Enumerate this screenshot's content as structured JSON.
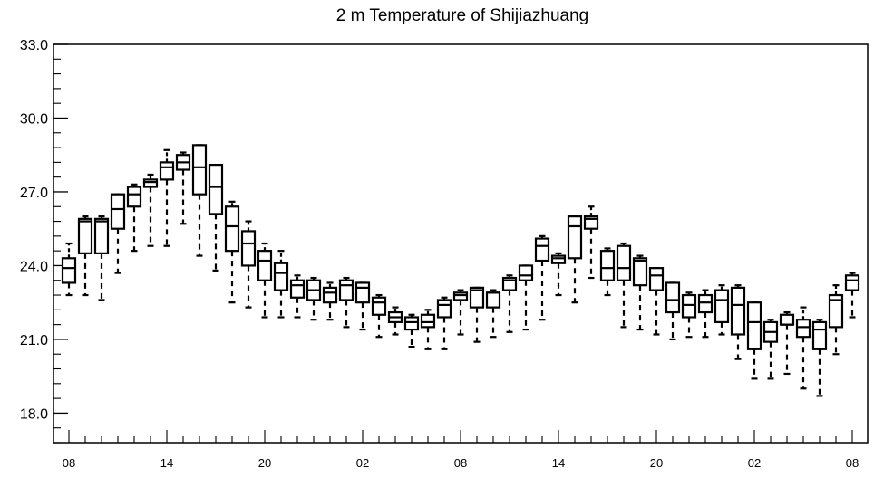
{
  "chart_data": {
    "type": "boxplot",
    "title": "2 m Temperature of Shijiazhuang",
    "xlabel": "",
    "ylabel": "",
    "ylim": [
      16.8,
      33.0
    ],
    "y_ticks": [
      18.0,
      21.0,
      24.0,
      27.0,
      30.0,
      33.0
    ],
    "y_tick_labels": [
      "18.0",
      "21.0",
      "24.0",
      "27.0",
      "30.0",
      "33.0"
    ],
    "x_tick_labels": [
      "08",
      "14",
      "20",
      "02",
      "08",
      "14",
      "20",
      "02",
      "08"
    ],
    "x_tick_positions": [
      0,
      6,
      12,
      18,
      24,
      30,
      36,
      42,
      48
    ],
    "grid": false,
    "series": [
      {
        "x": 0,
        "min": 22.8,
        "q1": 23.3,
        "median": 23.9,
        "q3": 24.3,
        "max": 24.9
      },
      {
        "x": 1,
        "min": 22.8,
        "q1": 24.5,
        "median": 25.8,
        "q3": 25.9,
        "max": 26.0
      },
      {
        "x": 2,
        "min": 22.6,
        "q1": 24.5,
        "median": 25.8,
        "q3": 25.9,
        "max": 26.0
      },
      {
        "x": 3,
        "min": 23.7,
        "q1": 25.5,
        "median": 26.3,
        "q3": 26.9,
        "max": 26.9
      },
      {
        "x": 4,
        "min": 24.6,
        "q1": 26.4,
        "median": 26.9,
        "q3": 27.2,
        "max": 27.3
      },
      {
        "x": 5,
        "min": 24.8,
        "q1": 27.2,
        "median": 27.4,
        "q3": 27.5,
        "max": 27.7
      },
      {
        "x": 6,
        "min": 24.8,
        "q1": 27.5,
        "median": 28.0,
        "q3": 28.2,
        "max": 28.7
      },
      {
        "x": 7,
        "min": 25.7,
        "q1": 27.9,
        "median": 28.2,
        "q3": 28.5,
        "max": 28.6
      },
      {
        "x": 8,
        "min": 24.4,
        "q1": 26.9,
        "median": 28.0,
        "q3": 28.9,
        "max": 28.9
      },
      {
        "x": 9,
        "min": 23.8,
        "q1": 26.1,
        "median": 27.2,
        "q3": 28.1,
        "max": 28.1
      },
      {
        "x": 10,
        "min": 22.5,
        "q1": 24.6,
        "median": 25.6,
        "q3": 26.4,
        "max": 26.6
      },
      {
        "x": 11,
        "min": 22.3,
        "q1": 24.0,
        "median": 24.9,
        "q3": 25.4,
        "max": 25.8
      },
      {
        "x": 12,
        "min": 21.9,
        "q1": 23.4,
        "median": 24.2,
        "q3": 24.6,
        "max": 24.9
      },
      {
        "x": 13,
        "min": 21.9,
        "q1": 23.0,
        "median": 23.7,
        "q3": 24.1,
        "max": 24.6
      },
      {
        "x": 14,
        "min": 21.9,
        "q1": 22.7,
        "median": 23.2,
        "q3": 23.4,
        "max": 23.6
      },
      {
        "x": 15,
        "min": 21.8,
        "q1": 22.6,
        "median": 23.0,
        "q3": 23.4,
        "max": 23.5
      },
      {
        "x": 16,
        "min": 21.8,
        "q1": 22.5,
        "median": 22.9,
        "q3": 23.1,
        "max": 23.3
      },
      {
        "x": 17,
        "min": 21.5,
        "q1": 22.6,
        "median": 23.2,
        "q3": 23.4,
        "max": 23.5
      },
      {
        "x": 18,
        "min": 21.4,
        "q1": 22.5,
        "median": 23.1,
        "q3": 23.3,
        "max": 23.3
      },
      {
        "x": 19,
        "min": 21.1,
        "q1": 22.0,
        "median": 22.5,
        "q3": 22.7,
        "max": 22.8
      },
      {
        "x": 20,
        "min": 21.2,
        "q1": 21.7,
        "median": 21.9,
        "q3": 22.1,
        "max": 22.3
      },
      {
        "x": 21,
        "min": 20.7,
        "q1": 21.4,
        "median": 21.7,
        "q3": 21.9,
        "max": 22.0
      },
      {
        "x": 22,
        "min": 20.6,
        "q1": 21.5,
        "median": 21.7,
        "q3": 22.0,
        "max": 22.2
      },
      {
        "x": 23,
        "min": 20.6,
        "q1": 21.9,
        "median": 22.4,
        "q3": 22.6,
        "max": 22.7
      },
      {
        "x": 24,
        "min": 21.2,
        "q1": 22.6,
        "median": 22.8,
        "q3": 22.9,
        "max": 23.0
      },
      {
        "x": 25,
        "min": 20.9,
        "q1": 22.3,
        "median": 23.0,
        "q3": 23.1,
        "max": 23.1
      },
      {
        "x": 26,
        "min": 21.1,
        "q1": 22.3,
        "median": 22.9,
        "q3": 22.9,
        "max": 23.0
      },
      {
        "x": 27,
        "min": 21.3,
        "q1": 23.0,
        "median": 23.4,
        "q3": 23.5,
        "max": 23.6
      },
      {
        "x": 28,
        "min": 21.4,
        "q1": 23.4,
        "median": 23.6,
        "q3": 24.0,
        "max": 24.0
      },
      {
        "x": 29,
        "min": 21.8,
        "q1": 24.2,
        "median": 24.8,
        "q3": 25.1,
        "max": 25.2
      },
      {
        "x": 30,
        "min": 22.8,
        "q1": 24.1,
        "median": 24.3,
        "q3": 24.4,
        "max": 24.5
      },
      {
        "x": 31,
        "min": 22.5,
        "q1": 24.3,
        "median": 25.6,
        "q3": 26.0,
        "max": 26.0
      },
      {
        "x": 32,
        "min": 23.5,
        "q1": 25.5,
        "median": 25.9,
        "q3": 26.0,
        "max": 26.4
      },
      {
        "x": 33,
        "min": 22.8,
        "q1": 23.4,
        "median": 23.9,
        "q3": 24.6,
        "max": 24.7
      },
      {
        "x": 34,
        "min": 21.5,
        "q1": 23.4,
        "median": 23.9,
        "q3": 24.8,
        "max": 24.9
      },
      {
        "x": 35,
        "min": 21.4,
        "q1": 23.2,
        "median": 24.2,
        "q3": 24.3,
        "max": 24.4
      },
      {
        "x": 36,
        "min": 21.2,
        "q1": 23.0,
        "median": 23.6,
        "q3": 23.9,
        "max": 23.9
      },
      {
        "x": 37,
        "min": 21.0,
        "q1": 22.1,
        "median": 22.6,
        "q3": 23.3,
        "max": 23.3
      },
      {
        "x": 38,
        "min": 21.1,
        "q1": 21.9,
        "median": 22.4,
        "q3": 22.8,
        "max": 22.9
      },
      {
        "x": 39,
        "min": 21.1,
        "q1": 22.1,
        "median": 22.5,
        "q3": 22.8,
        "max": 23.0
      },
      {
        "x": 40,
        "min": 21.2,
        "q1": 21.7,
        "median": 22.6,
        "q3": 23.0,
        "max": 23.2
      },
      {
        "x": 41,
        "min": 20.2,
        "q1": 21.2,
        "median": 22.4,
        "q3": 23.1,
        "max": 23.2
      },
      {
        "x": 42,
        "min": 19.4,
        "q1": 20.6,
        "median": 21.7,
        "q3": 22.5,
        "max": 22.5
      },
      {
        "x": 43,
        "min": 19.4,
        "q1": 20.9,
        "median": 21.3,
        "q3": 21.7,
        "max": 21.8
      },
      {
        "x": 44,
        "min": 19.6,
        "q1": 21.6,
        "median": 21.6,
        "q3": 22.0,
        "max": 22.1
      },
      {
        "x": 45,
        "min": 19.0,
        "q1": 21.1,
        "median": 21.5,
        "q3": 21.8,
        "max": 22.3
      },
      {
        "x": 46,
        "min": 18.7,
        "q1": 20.6,
        "median": 21.4,
        "q3": 21.7,
        "max": 21.8
      },
      {
        "x": 47,
        "min": 20.4,
        "q1": 21.5,
        "median": 22.6,
        "q3": 22.8,
        "max": 23.2
      },
      {
        "x": 48,
        "min": 21.9,
        "q1": 23.0,
        "median": 23.4,
        "q3": 23.6,
        "max": 23.7
      }
    ]
  }
}
